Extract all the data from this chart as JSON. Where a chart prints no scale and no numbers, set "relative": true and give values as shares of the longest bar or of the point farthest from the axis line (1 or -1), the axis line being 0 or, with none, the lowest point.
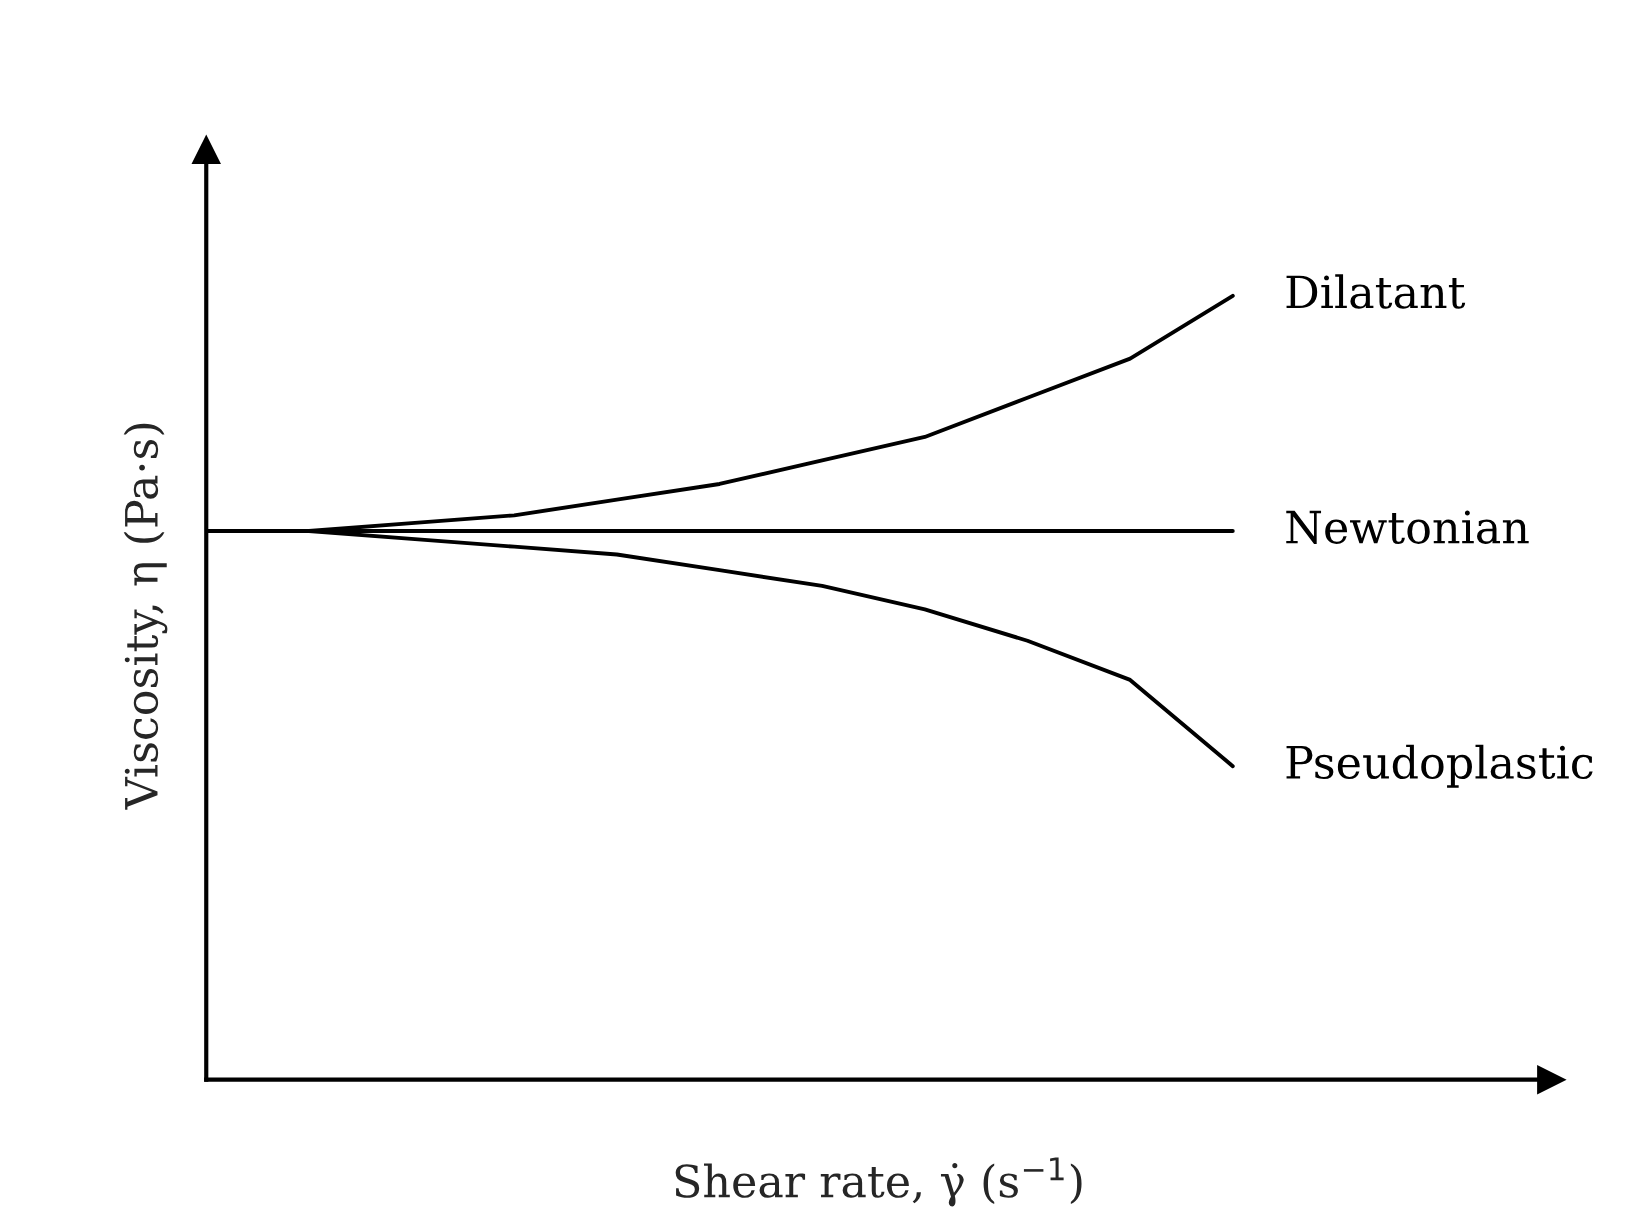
{
  "chart_data": {
    "type": "line",
    "relative": true,
    "tick_labels": false,
    "legend": false,
    "xlabel": "Shear rate, γ̇ (s$^{−1}$)",
    "ylabel": "Viscosity, η (Pa·s)",
    "categories": [
      null,
      null,
      null,
      null,
      null,
      null,
      null,
      null,
      null,
      null,
      null
    ],
    "series": [
      {
        "name": "Dilatant",
        "color": "#000000",
        "values": [
          0.7,
          0.7,
          0.71,
          0.72,
          0.74,
          0.76,
          0.79,
          0.82,
          0.87,
          0.92,
          1.0
        ]
      },
      {
        "name": "Newtonian",
        "color": "#000000",
        "values": [
          0.7,
          0.7,
          0.7,
          0.7,
          0.7,
          0.7,
          0.7,
          0.7,
          0.7,
          0.7,
          0.7
        ]
      },
      {
        "name": "Pseudoplastic",
        "color": "#000000",
        "values": [
          0.7,
          0.7,
          0.69,
          0.68,
          0.67,
          0.65,
          0.63,
          0.6,
          0.56,
          0.51,
          0.4
        ]
      }
    ]
  }
}
